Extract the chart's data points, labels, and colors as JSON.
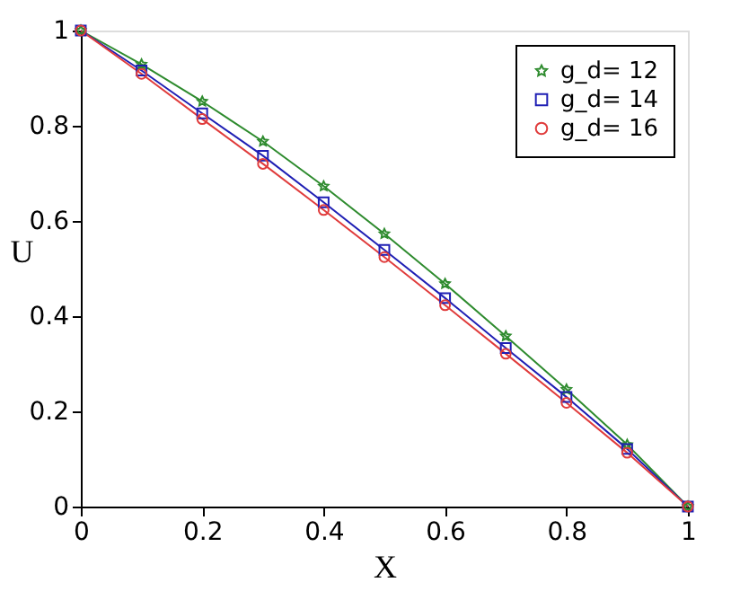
{
  "chart_data": {
    "type": "line",
    "xlabel": "X",
    "ylabel": "U",
    "x": [
      0,
      0.1,
      0.2,
      0.3,
      0.4,
      0.5,
      0.6,
      0.7,
      0.8,
      0.9,
      1
    ],
    "series": [
      {
        "name": "g_d= 12",
        "color": "#2e8b2e",
        "marker": "star",
        "values": [
          1,
          0.929,
          0.851,
          0.767,
          0.673,
          0.573,
          0.468,
          0.358,
          0.246,
          0.13,
          0
        ]
      },
      {
        "name": "g_d= 14",
        "color": "#1f1fb4",
        "marker": "square",
        "values": [
          1,
          0.916,
          0.826,
          0.737,
          0.639,
          0.539,
          0.438,
          0.333,
          0.23,
          0.121,
          0
        ]
      },
      {
        "name": "g_d= 16",
        "color": "#e03c3c",
        "marker": "circle",
        "values": [
          1,
          0.909,
          0.814,
          0.72,
          0.623,
          0.524,
          0.423,
          0.321,
          0.218,
          0.113,
          0
        ]
      }
    ],
    "xlim": [
      0,
      1
    ],
    "ylim": [
      0,
      1
    ],
    "xticks": [
      0,
      0.2,
      0.4,
      0.6,
      0.8,
      1
    ],
    "yticks": [
      0,
      0.2,
      0.4,
      0.6,
      0.8,
      1
    ],
    "grid": false,
    "legend": "top right",
    "line_style": "solid"
  }
}
